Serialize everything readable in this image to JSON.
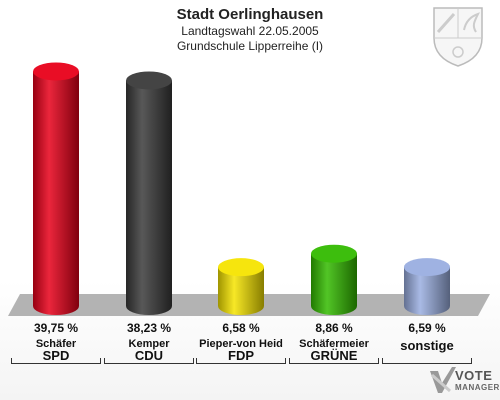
{
  "header": {
    "title": "Stadt Oerlinghausen",
    "subtitle1": "Landtagswahl 22.05.2005",
    "subtitle2": "Grundschule Lipperreihe (I)"
  },
  "logo": {
    "vote": "VOTE",
    "manager": "MANAGER"
  },
  "crest_icon": "nrw-crest-icon",
  "chart_data": {
    "type": "bar",
    "categories": [
      "SPD",
      "CDU",
      "FDP",
      "GRÜNE",
      "sonstige"
    ],
    "candidates": [
      "Schäfer",
      "Kemper",
      "Pieper-von Heid",
      "Schäfermeier",
      ""
    ],
    "values": [
      39.75,
      38.23,
      6.58,
      8.86,
      6.59
    ],
    "value_labels": [
      "39,75 %",
      "38,23 %",
      "6,58 %",
      "8,86 %",
      "6,59 %"
    ],
    "colors": [
      "#e8001a",
      "#3a3a3a",
      "#f5e400",
      "#33bb00",
      "#9aaee0"
    ],
    "ylim": [
      0,
      40
    ],
    "grid": false,
    "legend": "none"
  }
}
